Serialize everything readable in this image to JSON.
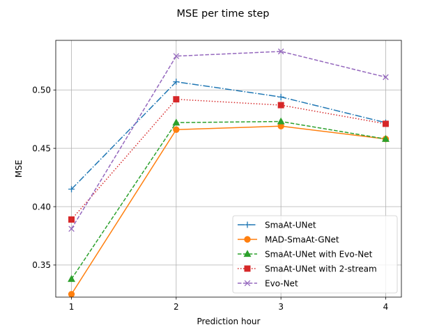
{
  "chart_data": {
    "type": "line",
    "title": "MSE per time step",
    "xlabel": "Prediction hour",
    "ylabel": "MSE",
    "x": [
      1,
      2,
      3,
      4
    ],
    "xticks": [
      "1",
      "2",
      "3",
      "4"
    ],
    "yticks": [
      "0.35",
      "0.40",
      "0.45",
      "0.50"
    ],
    "ytick_values": [
      0.35,
      0.4,
      0.45,
      0.5
    ],
    "xlim": [
      0.85,
      4.15
    ],
    "ylim": [
      0.3225,
      0.5425
    ],
    "grid": true,
    "legend_location": "lower right",
    "series": [
      {
        "name": "SmaAt-UNet",
        "values": [
          0.415,
          0.507,
          0.494,
          0.472
        ],
        "color": "#1f77b4",
        "linestyle": "dashdot",
        "marker": "plus"
      },
      {
        "name": "MAD-SmaAt-GNet",
        "values": [
          0.325,
          0.466,
          0.469,
          0.458
        ],
        "color": "#ff7f0e",
        "linestyle": "solid",
        "marker": "circle"
      },
      {
        "name": "SmaAt-UNet with Evo-Net",
        "values": [
          0.338,
          0.472,
          0.473,
          0.458
        ],
        "color": "#2ca02c",
        "linestyle": "dashed",
        "marker": "triangle"
      },
      {
        "name": "SmaAt-UNet with 2-stream",
        "values": [
          0.389,
          0.492,
          0.487,
          0.471
        ],
        "color": "#d62728",
        "linestyle": "dotted",
        "marker": "square"
      },
      {
        "name": "Evo-Net",
        "values": [
          0.381,
          0.529,
          0.533,
          0.511
        ],
        "color": "#9467bd",
        "linestyle": "dashed",
        "marker": "x"
      }
    ]
  }
}
